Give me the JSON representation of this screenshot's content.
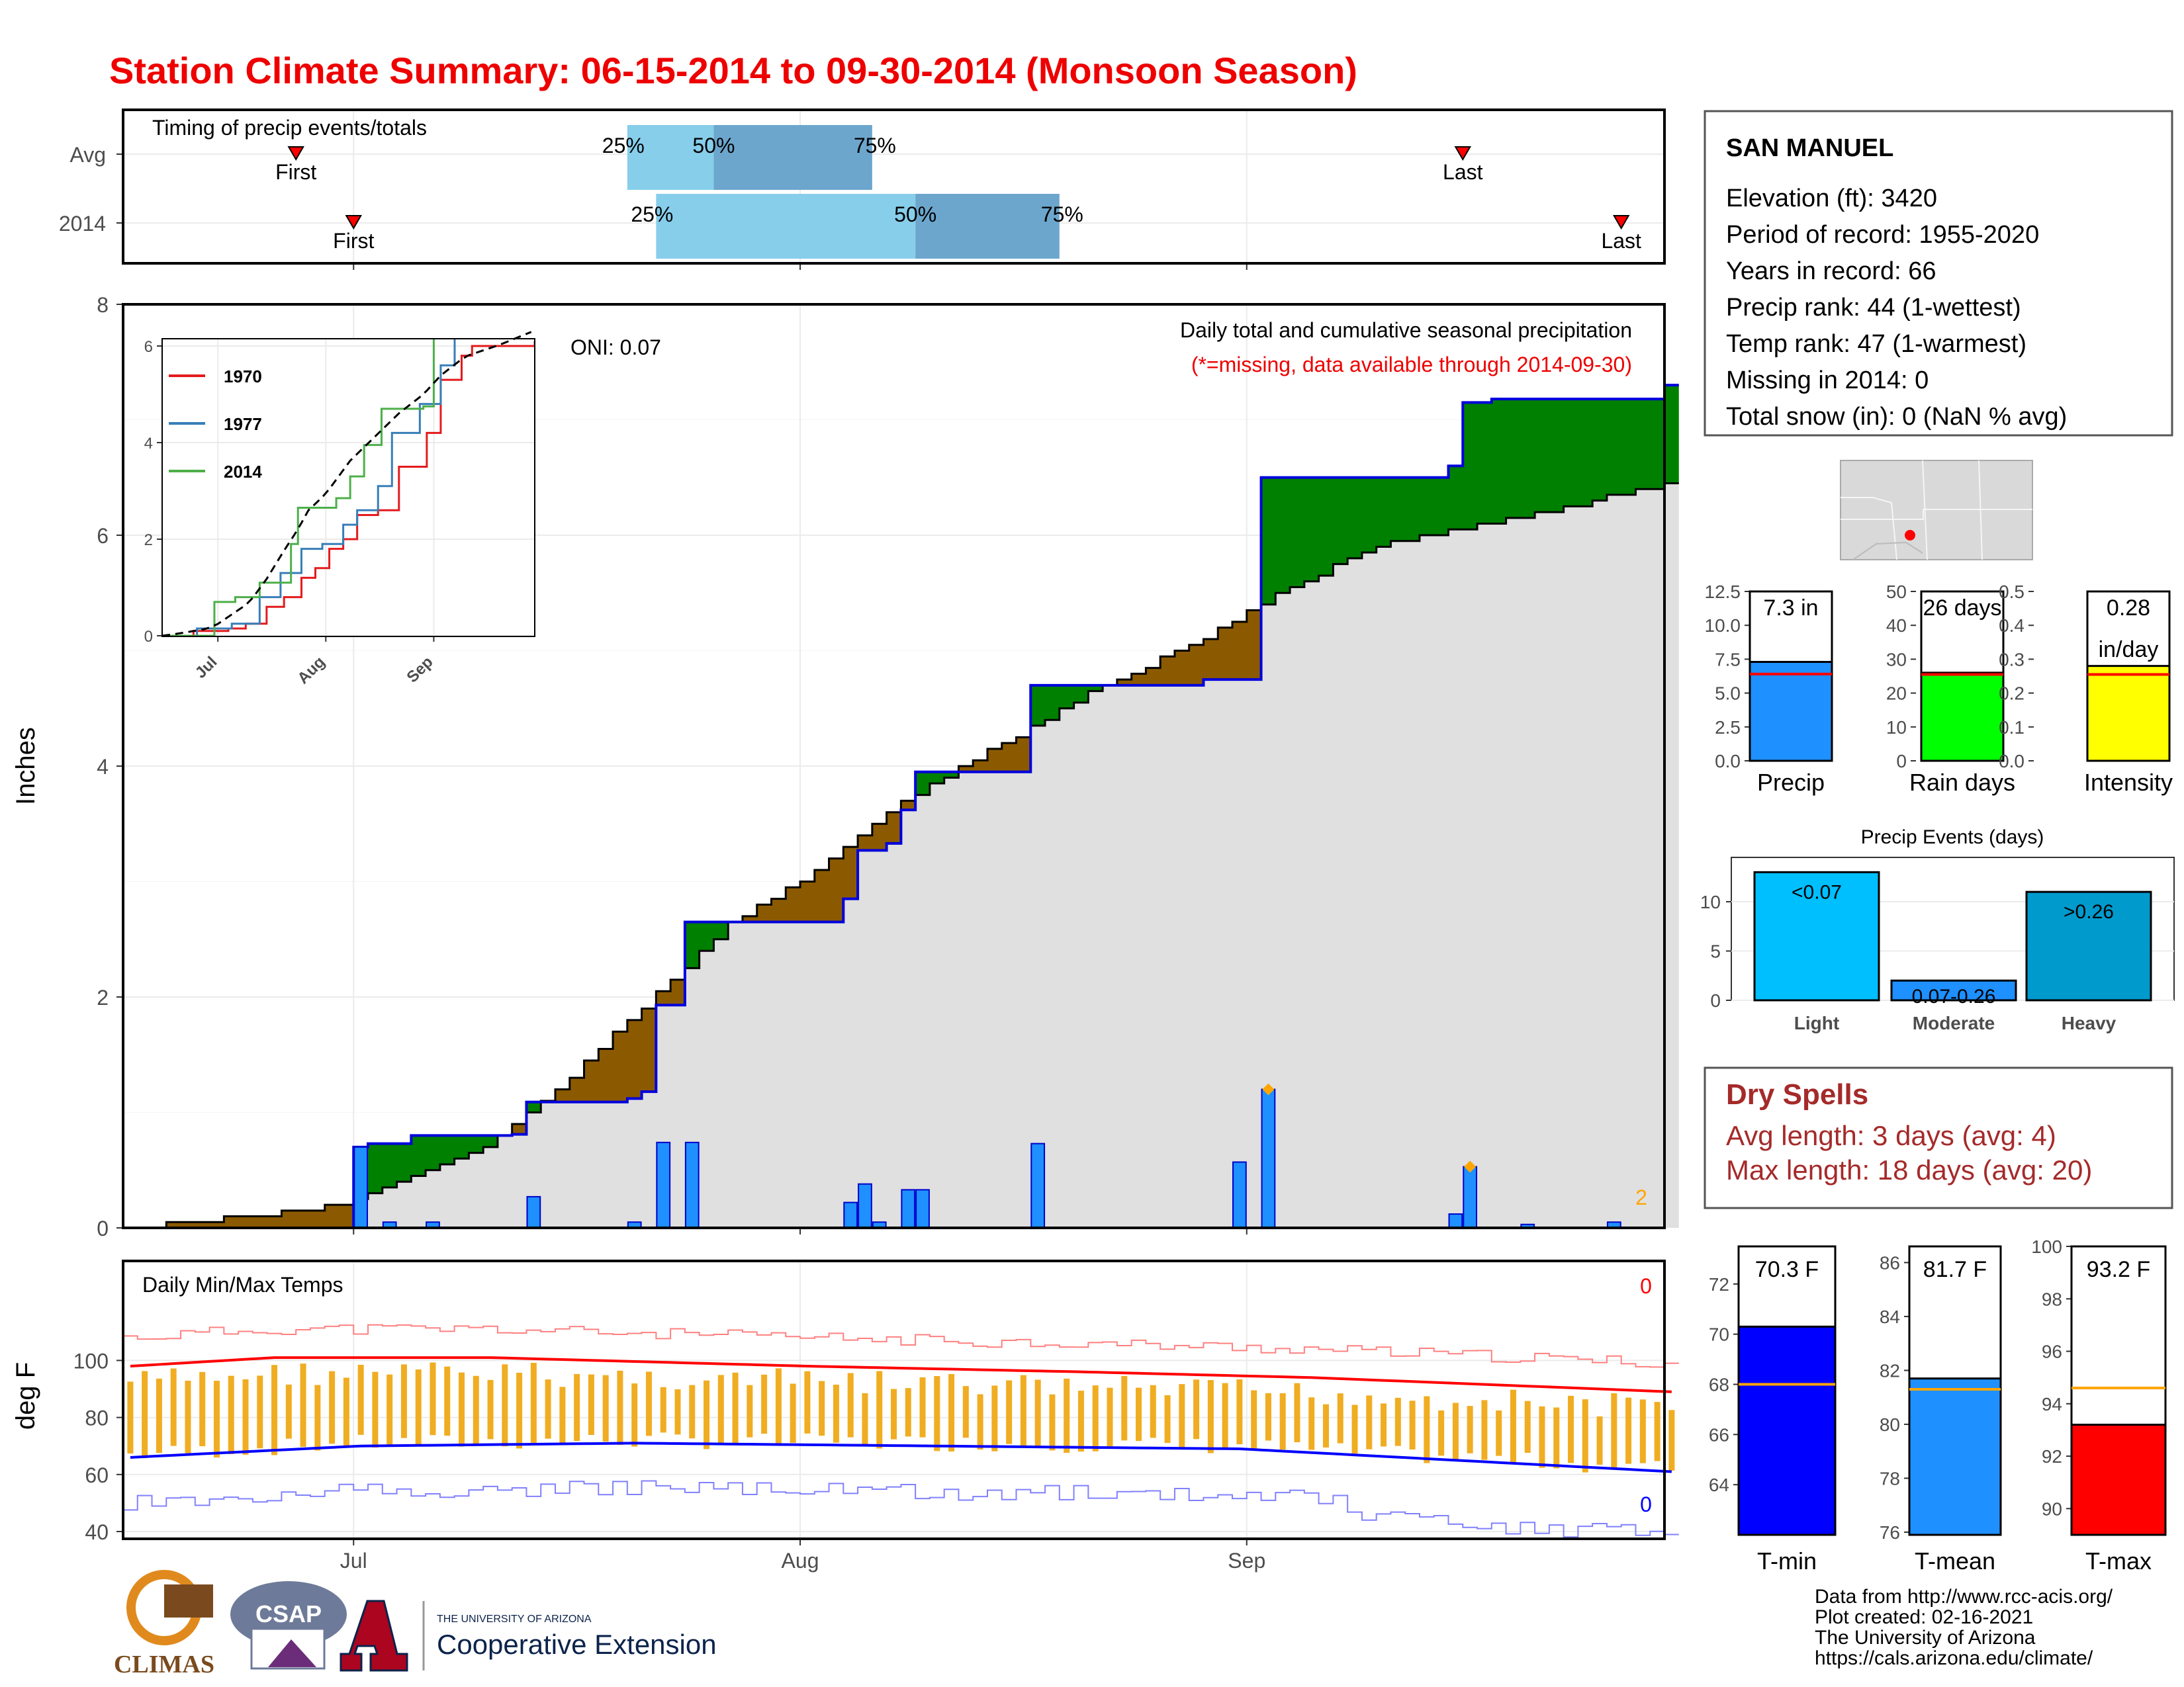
{
  "title": "Station Climate Summary: 06-15-2014 to 09-30-2014 (Monsoon Season)",
  "colors": {
    "title": "#ee0000",
    "light_blue": "#87ceeb",
    "mid_blue": "#6ca6cd",
    "precip_bar": "#1e90ff",
    "above_avg": "#008000",
    "below_avg": "#8b5a00",
    "grey_fill": "#e0e0e0",
    "dry_spell": "#a52a2a",
    "temp_range": "#f0ad22",
    "tmin": "#0000ff",
    "tmax": "#ff0000",
    "rain_days": "#00ff00",
    "intensity": "#ffff00",
    "light": "#00bfff",
    "moderate": "#1e90ff",
    "heavy": "#009acd"
  },
  "timing": {
    "title": "Timing of precip events/totals",
    "rows": [
      {
        "label": "Avg",
        "first": "06-27",
        "q25": "07-20",
        "q50": "07-26",
        "q75": "08-06",
        "last": "09-16"
      },
      {
        "label": "2014",
        "first": "07-01",
        "q25": "07-22",
        "q50": "08-09",
        "q75": "08-19",
        "last": "09-27"
      }
    ],
    "marker_labels": {
      "first": "First",
      "last": "Last",
      "q25": "25%",
      "q50": "50%",
      "q75": "75%"
    }
  },
  "main": {
    "ylabel": "Inches",
    "yticks": [
      "0",
      "2",
      "4",
      "6",
      "8"
    ],
    "xticks": [
      "Jul",
      "Aug",
      "Sep"
    ],
    "oni": "ONI: 0.07",
    "desc": "Daily total and cumulative seasonal precipitation",
    "note": "(*=missing, data available through 2014-09-30)",
    "count_label": "2"
  },
  "inset": {
    "yticks": [
      "0",
      "2",
      "4",
      "6"
    ],
    "xticks": [
      "Jul",
      "Aug",
      "Sep"
    ],
    "legend": [
      {
        "name": "1970",
        "color": "#e41a1c"
      },
      {
        "name": "1977",
        "color": "#377eb8"
      },
      {
        "name": "2014",
        "color": "#4daf4a"
      }
    ]
  },
  "temps": {
    "title": "Daily Min/Max Temps",
    "ylabel": "deg F",
    "yticks": [
      "40",
      "60",
      "80",
      "100"
    ],
    "xticks": [
      "Jul",
      "Aug",
      "Sep"
    ],
    "max_record_count": "0",
    "min_record_count": "0"
  },
  "station": {
    "name": "SAN MANUEL",
    "lines": [
      "Elevation (ft): 3420",
      "Period of record: 1955-2020",
      "Years in record: 66",
      "Precip rank: 44 (1-wettest)",
      "Temp rank: 47 (1-warmest)",
      "Missing in 2014: 0",
      "Total snow (in): 0 (NaN % avg)"
    ]
  },
  "summary_bars": [
    {
      "name": "Precip",
      "label": "7.3 in",
      "value": 7.3,
      "avg": 6.4,
      "ymax": 12.5,
      "ticks": [
        "0.0",
        "2.5",
        "5.0",
        "7.5",
        "10.0",
        "12.5"
      ],
      "color": "#1e90ff"
    },
    {
      "name": "Rain days",
      "label": "26 days",
      "value": 26,
      "avg": 25.5,
      "ymax": 50,
      "ticks": [
        "0",
        "10",
        "20",
        "30",
        "40",
        "50"
      ],
      "color": "#00ff00"
    },
    {
      "name": "Intensity",
      "label": "0.28",
      "label2": "in/day",
      "value": 0.28,
      "avg": 0.255,
      "ymax": 0.5,
      "ticks": [
        "0.0",
        "0.1",
        "0.2",
        "0.3",
        "0.4",
        "0.5"
      ],
      "color": "#ffff00"
    }
  ],
  "precip_events": {
    "title": "Precip Events (days)",
    "ticks": [
      "0",
      "5",
      "10"
    ],
    "bars": [
      {
        "name": "Light",
        "label": "<0.07",
        "value": 13
      },
      {
        "name": "Moderate",
        "label": "0.07-0.26",
        "value": 2
      },
      {
        "name": "Heavy",
        "label": ">0.26",
        "value": 11
      }
    ]
  },
  "dry_spells": {
    "title": "Dry Spells",
    "avg_line": "Avg length: 3 days (avg: 4)",
    "max_line": "Max length: 18 days (avg: 20)"
  },
  "temp_bars": [
    {
      "name": "T-min",
      "label": "70.3 F",
      "value": 70.3,
      "avg": 68.0,
      "ymin": 62.0,
      "ymax": 73.5,
      "ticks": [
        "64",
        "66",
        "68",
        "70",
        "72"
      ],
      "color": "#0000ff"
    },
    {
      "name": "T-mean",
      "label": "81.7 F",
      "value": 81.7,
      "avg": 81.3,
      "ymin": 75.9,
      "ymax": 86.6,
      "ticks": [
        "76",
        "78",
        "80",
        "82",
        "84",
        "86"
      ],
      "color": "#1e90ff"
    },
    {
      "name": "T-max",
      "label": "93.2 F",
      "value": 93.2,
      "avg": 94.6,
      "ymin": 89.0,
      "ymax": 100.0,
      "ticks": [
        "90",
        "92",
        "94",
        "96",
        "98",
        "100"
      ],
      "color": "#ff0000"
    }
  ],
  "credits": [
    "Data from http://www.rcc-acis.org/",
    "Plot created: 02-16-2021",
    "The University of Arizona",
    "https://cals.arizona.edu/climate/"
  ],
  "logos": {
    "climas": "CLIMAS",
    "csap": "CSAP",
    "ua_small": "THE UNIVERSITY OF ARIZONA",
    "ua_big": "Cooperative Extension"
  },
  "chart_data": {
    "type": "area",
    "x_range": [
      "06-15",
      "09-30"
    ],
    "y_range": [
      0,
      8
    ],
    "cumulative_2014": [
      {
        "date": "07-01",
        "value": 0.7
      },
      {
        "date": "07-02",
        "value": 0.73
      },
      {
        "date": "07-05",
        "value": 0.8
      },
      {
        "date": "07-12",
        "value": 0.81
      },
      {
        "date": "07-13",
        "value": 1.09
      },
      {
        "date": "07-20",
        "value": 1.12
      },
      {
        "date": "07-21",
        "value": 1.18
      },
      {
        "date": "07-22",
        "value": 1.93
      },
      {
        "date": "07-24",
        "value": 2.65
      },
      {
        "date": "08-03",
        "value": 2.65
      },
      {
        "date": "08-04",
        "value": 2.85
      },
      {
        "date": "08-05",
        "value": 3.27
      },
      {
        "date": "08-07",
        "value": 3.33
      },
      {
        "date": "08-08",
        "value": 3.62
      },
      {
        "date": "08-09",
        "value": 3.95
      },
      {
        "date": "08-17",
        "value": 4.7
      },
      {
        "date": "08-29",
        "value": 4.75
      },
      {
        "date": "09-02",
        "value": 6.5
      },
      {
        "date": "09-15",
        "value": 6.6
      },
      {
        "date": "09-16",
        "value": 7.15
      },
      {
        "date": "09-18",
        "value": 7.18
      },
      {
        "date": "09-30",
        "value": 7.3
      }
    ],
    "cumulative_avg": [
      {
        "date": "06-15",
        "value": 0.0
      },
      {
        "date": "06-20",
        "value": 0.05
      },
      {
        "date": "06-28",
        "value": 0.15
      },
      {
        "date": "07-01",
        "value": 0.25
      },
      {
        "date": "07-03",
        "value": 0.35
      },
      {
        "date": "07-10",
        "value": 0.7
      },
      {
        "date": "07-15",
        "value": 1.2
      },
      {
        "date": "07-20",
        "value": 1.8
      },
      {
        "date": "07-24",
        "value": 2.25
      },
      {
        "date": "07-27",
        "value": 2.65
      },
      {
        "date": "08-01",
        "value": 3.0
      },
      {
        "date": "08-08",
        "value": 3.7
      },
      {
        "date": "08-15",
        "value": 4.2
      },
      {
        "date": "08-22",
        "value": 4.7
      },
      {
        "date": "08-29",
        "value": 5.1
      },
      {
        "date": "09-03",
        "value": 5.5
      },
      {
        "date": "09-10",
        "value": 5.9
      },
      {
        "date": "09-20",
        "value": 6.15
      },
      {
        "date": "09-30",
        "value": 6.45
      }
    ],
    "daily_2014": [
      {
        "date": "07-01",
        "value": 0.7
      },
      {
        "date": "07-03",
        "value": 0.05
      },
      {
        "date": "07-06",
        "value": 0.05
      },
      {
        "date": "07-13",
        "value": 0.27
      },
      {
        "date": "07-20",
        "value": 0.05
      },
      {
        "date": "07-22",
        "value": 0.74
      },
      {
        "date": "07-24",
        "value": 0.74
      },
      {
        "date": "08-04",
        "value": 0.22
      },
      {
        "date": "08-05",
        "value": 0.38
      },
      {
        "date": "08-06",
        "value": 0.05
      },
      {
        "date": "08-08",
        "value": 0.33
      },
      {
        "date": "08-09",
        "value": 0.33
      },
      {
        "date": "08-17",
        "value": 0.73
      },
      {
        "date": "08-31",
        "value": 0.57
      },
      {
        "date": "09-02",
        "value": 1.2
      },
      {
        "date": "09-15",
        "value": 0.12
      },
      {
        "date": "09-16",
        "value": 0.53
      },
      {
        "date": "09-20",
        "value": 0.03
      },
      {
        "date": "09-26",
        "value": 0.05
      }
    ],
    "record_markers": [
      {
        "date": "09-02",
        "value": 1.2
      },
      {
        "date": "09-16",
        "value": 0.53
      }
    ],
    "temps_avg_max": [
      {
        "date": "06-15",
        "value": 98
      },
      {
        "date": "06-25",
        "value": 101
      },
      {
        "date": "07-10",
        "value": 101
      },
      {
        "date": "08-01",
        "value": 98
      },
      {
        "date": "08-20",
        "value": 96
      },
      {
        "date": "09-05",
        "value": 94
      },
      {
        "date": "09-20",
        "value": 91
      },
      {
        "date": "09-30",
        "value": 89
      }
    ],
    "temps_avg_min": [
      {
        "date": "06-15",
        "value": 66
      },
      {
        "date": "07-01",
        "value": 70
      },
      {
        "date": "07-20",
        "value": 71
      },
      {
        "date": "08-10",
        "value": 70
      },
      {
        "date": "08-31",
        "value": 69
      },
      {
        "date": "09-15",
        "value": 65
      },
      {
        "date": "09-30",
        "value": 61
      }
    ]
  }
}
